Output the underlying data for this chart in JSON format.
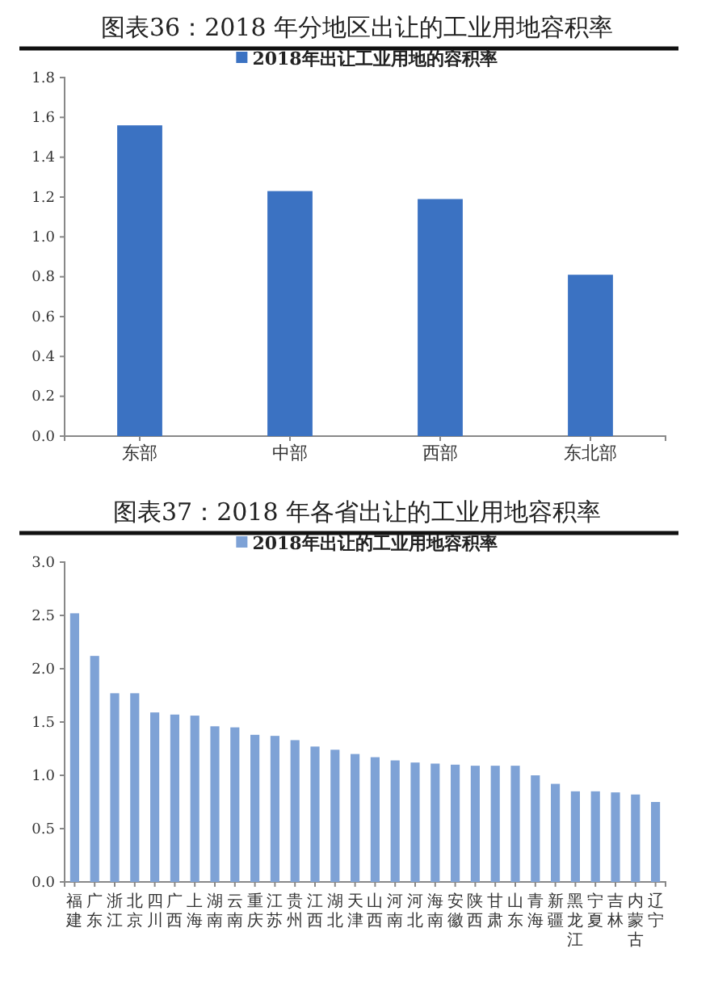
{
  "chart_data": [
    {
      "type": "bar",
      "title": "图表36：2018 年分地区出让的工业用地容积率",
      "categories": [
        "东部",
        "中部",
        "西部",
        "东北部"
      ],
      "series": [
        {
          "name": "2018年出让工业用地的容积率",
          "color": "#3b72c2",
          "values": [
            1.56,
            1.23,
            1.19,
            0.81
          ]
        }
      ],
      "ylim": [
        0,
        1.8
      ],
      "yticks": [
        {
          "value": 0,
          "label": "0.0"
        },
        0.2,
        0.4,
        0.6,
        0.8,
        {
          "value": 1,
          "label": "1.0"
        },
        1.2,
        1.4,
        1.6,
        1.8
      ],
      "grid": false,
      "legend": "top"
    },
    {
      "type": "bar",
      "title": "图表37：2018 年各省出让的工业用地容积率",
      "categories": [
        "福建",
        "广东",
        "浙江",
        "北京",
        "四川",
        "广西",
        "上海",
        "湖南",
        "云南",
        "重庆",
        "江苏",
        "贵州",
        "江西",
        "湖北",
        "天津",
        "山西",
        "河南",
        "河北",
        "海南",
        "安徽",
        "陕西",
        "甘肃",
        "山东",
        "青海",
        "新疆",
        "黑龙江",
        "宁夏",
        "吉林",
        "内蒙古",
        "辽宁"
      ],
      "series": [
        {
          "name": "2018年出让的工业用地容积率",
          "color": "#7ea2d6",
          "values": [
            2.52,
            2.12,
            1.77,
            1.77,
            1.59,
            1.57,
            1.56,
            1.46,
            1.45,
            1.38,
            1.37,
            1.33,
            1.27,
            1.24,
            1.2,
            1.17,
            1.14,
            1.12,
            1.11,
            1.1,
            1.09,
            1.09,
            1.09,
            1.0,
            0.92,
            0.85,
            0.85,
            0.84,
            0.82,
            0.75
          ]
        }
      ],
      "ylim": [
        0,
        3
      ],
      "yticks": [
        {
          "value": 0,
          "label": "0.0"
        },
        0.5,
        {
          "value": 1,
          "label": "1.0"
        },
        1.5,
        {
          "value": 2,
          "label": "2.0"
        },
        2.5,
        {
          "value": 3,
          "label": "3.0"
        }
      ],
      "grid": false,
      "legend": "top"
    }
  ]
}
